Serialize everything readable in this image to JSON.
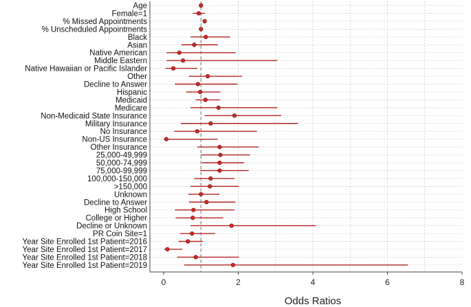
{
  "chart_data": {
    "type": "forest",
    "title": "",
    "xlabel": "Odds Ratios",
    "ylabel": "",
    "xlim": [
      0,
      8
    ],
    "xticks": [
      0,
      2,
      4,
      6,
      8
    ],
    "xtick_labels": [
      "0",
      "2",
      "4",
      "6",
      "8"
    ],
    "reference_line": 1,
    "grid": true,
    "colors": {
      "marker": "#cc2a2a",
      "line": "#b32020",
      "reference": "#888888",
      "grid": "#cccccc"
    },
    "rows": [
      {
        "label": "Age",
        "or": 1.0,
        "lo": 0.98,
        "hi": 1.02
      },
      {
        "label": "Female=1",
        "or": 0.94,
        "lo": 0.78,
        "hi": 1.1
      },
      {
        "label": "% Missed Appointments",
        "or": 1.1,
        "lo": 1.05,
        "hi": 1.15
      },
      {
        "label": "% Unscheduled Appointments",
        "or": 1.0,
        "lo": 0.97,
        "hi": 1.04
      },
      {
        "label": "Black",
        "or": 1.13,
        "lo": 0.72,
        "hi": 1.78
      },
      {
        "label": "Asian",
        "or": 0.82,
        "lo": 0.48,
        "hi": 1.45
      },
      {
        "label": "Native American",
        "or": 0.42,
        "lo": 0.08,
        "hi": 1.93
      },
      {
        "label": "Middle Eastern",
        "or": 0.52,
        "lo": 0.08,
        "hi": 3.05
      },
      {
        "label": "Native Hawaiian or Pacific Islander",
        "or": 0.26,
        "lo": 0.05,
        "hi": 0.9
      },
      {
        "label": "Other",
        "or": 1.18,
        "lo": 0.68,
        "hi": 2.1
      },
      {
        "label": "Decline to Answer",
        "or": 0.92,
        "lo": 0.3,
        "hi": 1.98
      },
      {
        "label": "Hispanic",
        "or": 0.98,
        "lo": 0.6,
        "hi": 1.52
      },
      {
        "label": "Medicaid",
        "or": 1.12,
        "lo": 0.86,
        "hi": 1.52
      },
      {
        "label": "Medicare",
        "or": 1.47,
        "lo": 0.72,
        "hi": 3.05
      },
      {
        "label": "Non-Medicaid State Insurance",
        "or": 1.9,
        "lo": 1.1,
        "hi": 3.15
      },
      {
        "label": "Military Insurance",
        "or": 1.26,
        "lo": 0.46,
        "hi": 3.6
      },
      {
        "label": "No Insurance",
        "or": 0.9,
        "lo": 0.28,
        "hi": 2.5
      },
      {
        "label": "Non-US Insurance",
        "or": 0.07,
        "lo": 0.01,
        "hi": 1.45
      },
      {
        "label": "Other Insurance",
        "or": 1.5,
        "lo": 0.9,
        "hi": 2.55
      },
      {
        "label": "25,000-49,999",
        "or": 1.52,
        "lo": 1.0,
        "hi": 2.32
      },
      {
        "label": "50,000-74,999",
        "or": 1.5,
        "lo": 1.02,
        "hi": 2.15
      },
      {
        "label": "75,000-99,999",
        "or": 1.5,
        "lo": 0.98,
        "hi": 2.28
      },
      {
        "label": "100,000-150,000",
        "or": 1.26,
        "lo": 0.82,
        "hi": 1.9
      },
      {
        "label": ">150,000",
        "or": 1.24,
        "lo": 0.72,
        "hi": 2.02
      },
      {
        "label": "Unknown",
        "or": 1.0,
        "lo": 0.66,
        "hi": 1.5
      },
      {
        "label": "Decline to Answer",
        "or": 1.15,
        "lo": 0.68,
        "hi": 1.92
      },
      {
        "label": "High School",
        "or": 0.8,
        "lo": 0.3,
        "hi": 1.9
      },
      {
        "label": "College or Higher",
        "or": 0.78,
        "lo": 0.32,
        "hi": 1.6
      },
      {
        "label": "Decline or Unknown",
        "or": 1.82,
        "lo": 0.72,
        "hi": 4.08
      },
      {
        "label": "PR Coin Site=1",
        "or": 0.76,
        "lo": 0.44,
        "hi": 1.38
      },
      {
        "label": "Year Site Enrolled 1st Patient=2016",
        "or": 0.65,
        "lo": 0.4,
        "hi": 1.05
      },
      {
        "label": "Year Site Enrolled 1st Patient=2017",
        "or": 0.1,
        "lo": 0.02,
        "hi": 0.5
      },
      {
        "label": "Year Site Enrolled 1st Patient=2018",
        "or": 0.86,
        "lo": 0.36,
        "hi": 2.02
      },
      {
        "label": "Year Site Enrolled 1st Patient=2019",
        "or": 1.86,
        "lo": 0.55,
        "hi": 6.55
      }
    ]
  }
}
